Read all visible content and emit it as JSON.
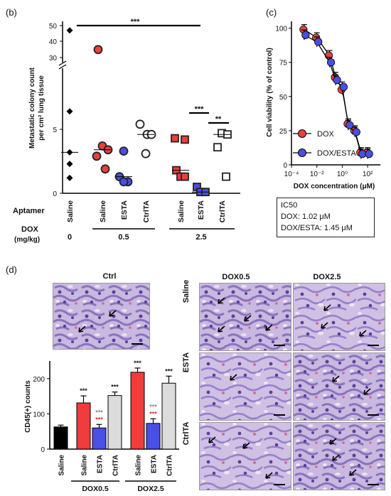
{
  "panels": {
    "b": "(b)",
    "c": "(c)",
    "d": "(d)"
  },
  "panel_b": {
    "ylabel_line1": "Metastatic colony count",
    "ylabel_line2": "per cm² lung tissue",
    "yticks": [
      "0",
      "5",
      "30",
      "40",
      "50"
    ],
    "sig_top": "***",
    "sig_saline_esta": "***",
    "sig_esta_ctrlta": "**",
    "aptamer_label": "Aptamer",
    "dox_label": "DOX",
    "dox_unit": "(mg/kg)",
    "groups": [
      "Saline",
      "Saline",
      "ESTA",
      "CtrlTA",
      "Saline",
      "ESTA",
      "CtrlTA"
    ],
    "dose_values": [
      "0",
      "0.5",
      "2.5"
    ]
  },
  "panel_c": {
    "ylabel": "Cell viability (% of control)",
    "xlabel": "DOX concentration (μM)",
    "yticks": [
      "0",
      "25",
      "50",
      "75",
      "100"
    ],
    "xticks": [
      "10⁻⁴",
      "10⁻²",
      "10⁰",
      "10²"
    ],
    "legend": [
      "DOX",
      "DOX/ESTA"
    ],
    "ic50_title": "IC50",
    "ic50_dox": "DOX: 1.02 μM",
    "ic50_dox_esta": "DOX/ESTA: 1.45 μM"
  },
  "panel_d": {
    "ctrl_label": "Ctrl",
    "col_labels": [
      "DOX0.5",
      "DOX2.5"
    ],
    "row_labels": [
      "Saline",
      "ESTA",
      "CtrlTA"
    ],
    "ylabel": "CD45(+) counts",
    "yticks": [
      "0",
      "100",
      "200"
    ],
    "bar_categories": [
      "Saline",
      "Saline",
      "ESTA",
      "CtrlTA",
      "Saline",
      "ESTA",
      "CtrlTA"
    ],
    "group_labels": [
      "DOX0.5",
      "DOX2.5"
    ]
  },
  "chart_data": [
    {
      "type": "scatter",
      "panel": "b",
      "ylabel": "Metastatic colony count per cm² lung tissue",
      "series": [
        {
          "name": "Saline",
          "group": "0",
          "values": [
            47,
            6.4,
            3.2,
            2.3,
            1.2
          ],
          "marker": "diamond",
          "color": "#000000"
        },
        {
          "name": "Saline",
          "group": "0.5",
          "values": [
            35,
            3.7,
            3.4,
            2.9,
            1.9
          ],
          "marker": "circle",
          "color": "#e8413c"
        },
        {
          "name": "ESTA",
          "group": "0.5",
          "values": [
            3.3,
            1.3,
            0.9,
            0.9
          ],
          "marker": "circle",
          "color": "#4a4fe0"
        },
        {
          "name": "CtrlTA",
          "group": "0.5",
          "values": [
            5.4,
            4.6,
            4.6,
            3.1
          ],
          "marker": "circle",
          "color": "#ffffff"
        },
        {
          "name": "Saline",
          "group": "2.5",
          "values": [
            4.3,
            4.2,
            1.8,
            1.3,
            1.3
          ],
          "marker": "square",
          "color": "#e8413c"
        },
        {
          "name": "ESTA",
          "group": "2.5",
          "values": [
            0.5,
            0.1,
            0.1
          ],
          "marker": "square",
          "color": "#4a4fe0"
        },
        {
          "name": "CtrlTA",
          "group": "2.5",
          "values": [
            4.7,
            4.6,
            3.6,
            1.3
          ],
          "marker": "square",
          "color": "#ffffff"
        }
      ]
    },
    {
      "type": "line",
      "panel": "c",
      "xlabel": "DOX concentration (μM)",
      "ylabel": "Cell viability (% of control)",
      "xscale": "log",
      "xlim": [
        0.0001,
        1000
      ],
      "ylim": [
        0,
        105
      ],
      "series": [
        {
          "name": "DOX",
          "color": "#e8413c",
          "x": [
            0.001,
            0.01,
            0.1,
            0.3,
            1,
            3,
            10,
            30,
            100
          ],
          "y": [
            99,
            93,
            80,
            64,
            55,
            30,
            25,
            9,
            9
          ]
        },
        {
          "name": "DOX/ESTA",
          "color": "#4a4fe0",
          "x": [
            0.001,
            0.01,
            0.1,
            0.3,
            1,
            3,
            10,
            30,
            100
          ],
          "y": [
            95,
            90,
            75,
            62,
            57,
            29,
            24,
            8,
            8
          ]
        }
      ]
    },
    {
      "type": "bar",
      "panel": "d",
      "ylabel": "CD45(+) counts",
      "ylim": [
        0,
        250
      ],
      "categories": [
        "Saline",
        "Saline",
        "ESTA",
        "CtrlTA",
        "Saline",
        "ESTA",
        "CtrlTA"
      ],
      "groups": [
        "",
        "DOX0.5",
        "DOX0.5",
        "DOX0.5",
        "DOX2.5",
        "DOX2.5",
        "DOX2.5"
      ],
      "values": [
        63,
        131,
        60,
        152,
        218,
        73,
        187
      ],
      "errors": [
        5,
        20,
        10,
        10,
        12,
        13,
        20
      ],
      "colors": [
        "#000000",
        "#f03c3c",
        "#4a4fe6",
        "#dcdcdc",
        "#f03c3c",
        "#4a4fe6",
        "#dcdcdc"
      ],
      "sig_black": [
        "",
        "***",
        "",
        "***",
        "***",
        "",
        "***"
      ],
      "sig_grey": [
        "",
        "",
        "***",
        "",
        "",
        "***",
        ""
      ],
      "sig_red": [
        "",
        "",
        "***",
        "",
        "",
        "***",
        ""
      ]
    }
  ]
}
